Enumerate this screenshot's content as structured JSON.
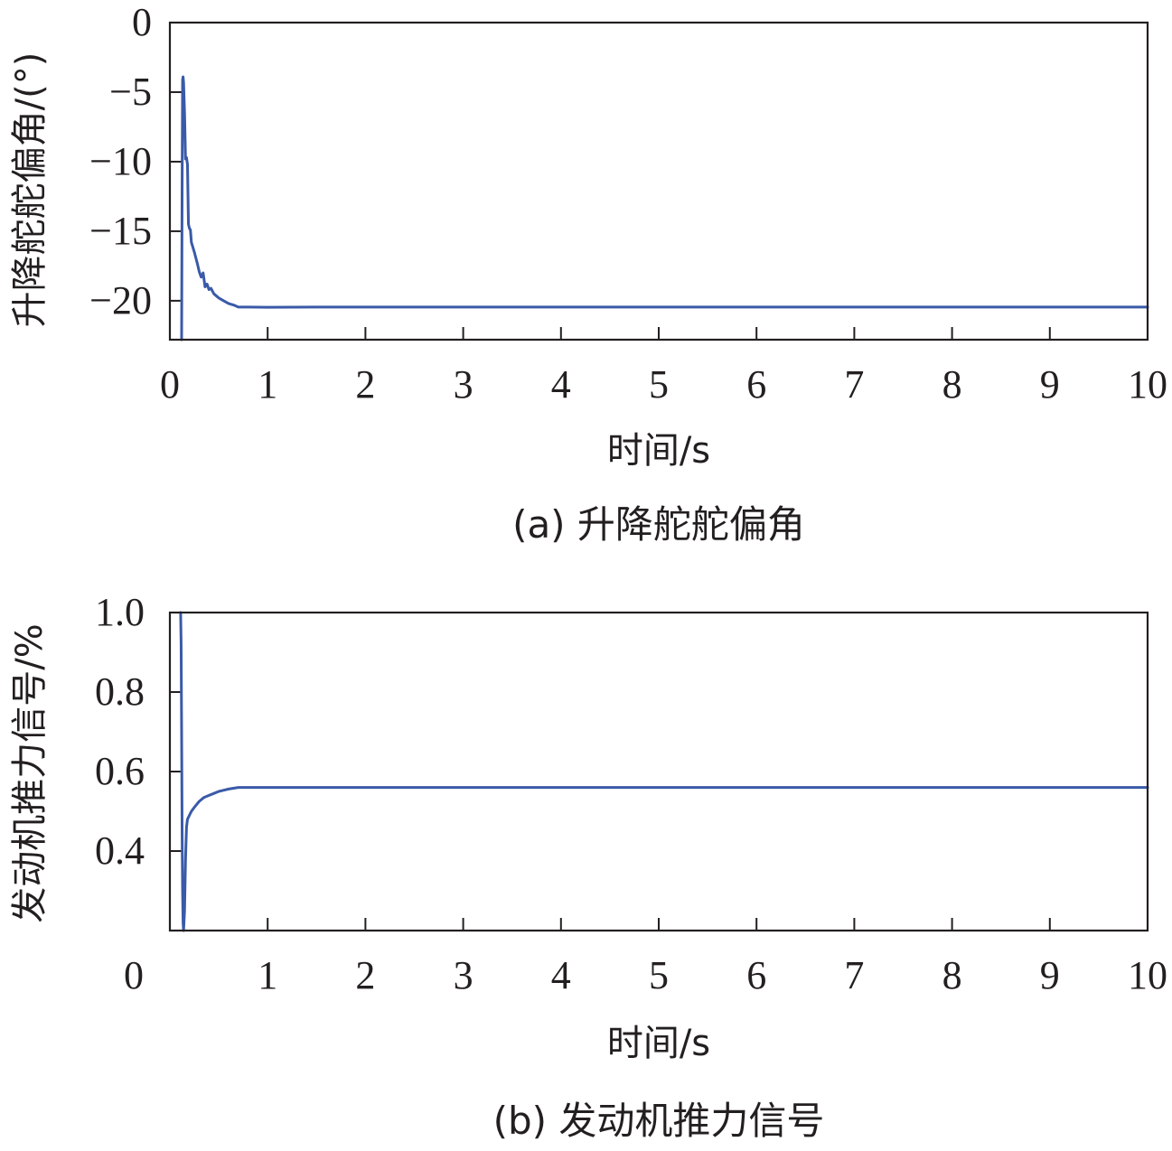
{
  "chart_data": [
    {
      "type": "line",
      "xlabel": "时间/s",
      "ylabel": "升降舵舵偏角/(°)",
      "caption": "(a) 升降舵舵偏角",
      "xlim": [
        0,
        10
      ],
      "ylim": [
        -22.8,
        0
      ],
      "xticks": [
        "0",
        "1",
        "2",
        "3",
        "4",
        "5",
        "6",
        "7",
        "8",
        "9",
        "10"
      ],
      "yticks": [
        "0",
        "−5",
        "−10",
        "−15",
        "−20"
      ],
      "ytick_values": [
        0,
        -5,
        -10,
        -15,
        -20
      ],
      "grid": false,
      "color": "#3a5aa8",
      "series": [
        {
          "x": [
            0.12,
            0.125,
            0.13,
            0.135,
            0.14,
            0.15,
            0.16,
            0.17,
            0.18,
            0.19,
            0.2,
            0.21,
            0.22,
            0.25,
            0.28,
            0.3,
            0.32,
            0.34,
            0.36,
            0.38,
            0.4,
            0.42,
            0.45,
            0.5,
            0.55,
            0.6,
            0.65,
            0.7,
            0.8,
            1.0,
            1.5,
            2.0,
            3.0,
            4.0,
            5.0,
            6.0,
            7.0,
            8.0,
            9.0,
            10.0
          ],
          "y": [
            -22.8,
            -12.0,
            -4.1,
            -3.9,
            -4.3,
            -6.5,
            -9.8,
            -9.7,
            -10.2,
            -14.5,
            -14.8,
            -14.9,
            -15.8,
            -16.5,
            -17.3,
            -17.9,
            -18.3,
            -18.0,
            -19.0,
            -18.8,
            -19.2,
            -19.1,
            -19.5,
            -19.8,
            -20.0,
            -20.2,
            -20.3,
            -20.45,
            -20.45,
            -20.47,
            -20.45,
            -20.45,
            -20.45,
            -20.45,
            -20.45,
            -20.45,
            -20.45,
            -20.45,
            -20.45,
            -20.45
          ]
        }
      ]
    },
    {
      "type": "line",
      "xlabel": "时间/s",
      "ylabel": "发动机推力信号/%",
      "caption": "(b) 发动机推力信号",
      "xlim": [
        0,
        10
      ],
      "ylim": [
        0.2,
        1.0
      ],
      "xticks": [
        "0",
        "1",
        "2",
        "3",
        "4",
        "5",
        "6",
        "7",
        "8",
        "9",
        "10"
      ],
      "yticks": [
        "1.0",
        "0.8",
        "0.6",
        "0.4"
      ],
      "ytick_values": [
        1.0,
        0.8,
        0.6,
        0.4
      ],
      "grid": false,
      "color": "#3a5aa8",
      "series": [
        {
          "x": [
            0.11,
            0.115,
            0.12,
            0.125,
            0.13,
            0.135,
            0.14,
            0.15,
            0.16,
            0.17,
            0.18,
            0.2,
            0.22,
            0.25,
            0.3,
            0.35,
            0.4,
            0.45,
            0.5,
            0.55,
            0.6,
            0.65,
            0.7,
            0.8,
            1.0,
            2.0,
            3.0,
            4.0,
            5.0,
            6.0,
            7.0,
            8.0,
            9.0,
            10.0
          ],
          "y": [
            1.0,
            0.92,
            0.7,
            0.45,
            0.3,
            0.22,
            0.2,
            0.25,
            0.38,
            0.46,
            0.48,
            0.49,
            0.5,
            0.51,
            0.525,
            0.535,
            0.54,
            0.545,
            0.55,
            0.553,
            0.556,
            0.558,
            0.56,
            0.56,
            0.56,
            0.56,
            0.56,
            0.56,
            0.56,
            0.56,
            0.56,
            0.56,
            0.56,
            0.56
          ]
        }
      ]
    }
  ]
}
